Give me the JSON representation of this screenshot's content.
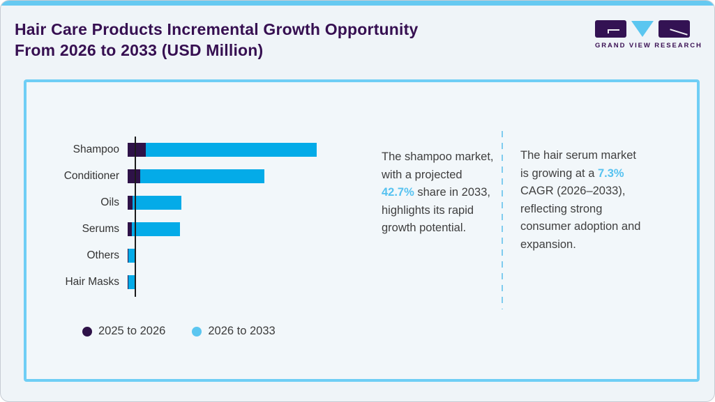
{
  "header": {
    "title_line1": "Hair Care Products Incremental Growth Opportunity",
    "title_line2": "From 2026 to 2033 (USD Million)",
    "logo_text": "GRAND VIEW RESEARCH"
  },
  "chart_data": {
    "type": "bar",
    "orientation": "horizontal",
    "title": "Hair Care Products Incremental Growth Opportunity From 2026 to 2033 (USD Million)",
    "units": "USD Million",
    "value_axis_labeled": false,
    "values_are_relative_lengths": true,
    "categories": [
      "Shampoo",
      "Conditioner",
      "Oils",
      "Serums",
      "Others",
      "Hair Masks"
    ],
    "series": [
      {
        "name": "2025 to 2026",
        "color": "#2e1248",
        "values": [
          26,
          18,
          7,
          6,
          1,
          1
        ]
      },
      {
        "name": "2026 to 2033",
        "color": "#04abe8",
        "values": [
          245,
          178,
          70,
          69,
          10,
          9
        ]
      }
    ],
    "legend_position": "bottom-left",
    "grid": false
  },
  "legend": {
    "items": [
      {
        "label": "2025 to 2026",
        "color": "#2e1248"
      },
      {
        "label": "2026 to 2033",
        "color": "#5bc6f0"
      }
    ]
  },
  "notes": [
    {
      "pre": "The shampoo market, with a projected ",
      "accent": "42.7%",
      "post": " share in 2033, highlights its rapid growth potential."
    },
    {
      "pre": "The hair serum market is growing at a ",
      "accent": "7.3%",
      "post": " CAGR (2026–2033), reflecting strong consumer adoption and expansion."
    }
  ],
  "colors": {
    "page_background": "#eff4f8",
    "panel_background": "#f2f7fa",
    "panel_border": "#6fcef5",
    "top_strip": "#66c9f1",
    "title_purple": "#360f51",
    "bar_purple": "#2e1248",
    "bar_blue": "#04abe8",
    "accent_blue": "#56c2f0",
    "body_text": "#3f3f3f"
  }
}
